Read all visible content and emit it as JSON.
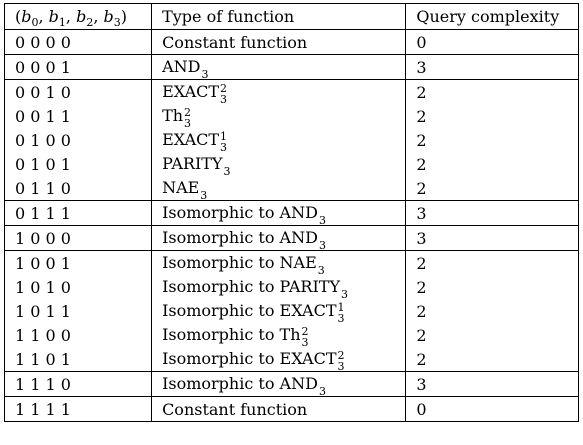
{
  "table": {
    "headers": {
      "bits": "(b0, b1, b2, b3)",
      "type": "Type of function",
      "query": "Query complexity"
    },
    "rows": [
      {
        "bits": "0 0 0 0",
        "prefix": "",
        "base": "Constant function",
        "sup": "",
        "sub": "",
        "query": "0",
        "group_start": true
      },
      {
        "bits": "0 0 0 1",
        "prefix": "",
        "base": "AND",
        "sup": "",
        "sub": "3",
        "query": "3",
        "group_start": true
      },
      {
        "bits": "0 0 1 0",
        "prefix": "",
        "base": "EXACT",
        "sup": "2",
        "sub": "3",
        "query": "2",
        "group_start": true
      },
      {
        "bits": "0 0 1 1",
        "prefix": "",
        "base": "Th",
        "sup": "2",
        "sub": "3",
        "query": "2",
        "group_start": false
      },
      {
        "bits": "0 1 0 0",
        "prefix": "",
        "base": "EXACT",
        "sup": "1",
        "sub": "3",
        "query": "2",
        "group_start": false
      },
      {
        "bits": "0 1 0 1",
        "prefix": "",
        "base": "PARITY",
        "sup": "",
        "sub": "3",
        "query": "2",
        "group_start": false
      },
      {
        "bits": "0 1 1 0",
        "prefix": "",
        "base": "NAE",
        "sup": "",
        "sub": "3",
        "query": "2",
        "group_start": false
      },
      {
        "bits": "0 1 1 1",
        "prefix": "Isomorphic to ",
        "base": "AND",
        "sup": "",
        "sub": "3",
        "query": "3",
        "group_start": true
      },
      {
        "bits": "1 0 0 0",
        "prefix": "Isomorphic to ",
        "base": "AND",
        "sup": "",
        "sub": "3",
        "query": "3",
        "group_start": true
      },
      {
        "bits": "1 0 0 1",
        "prefix": "Isomorphic to ",
        "base": "NAE",
        "sup": "",
        "sub": "3",
        "query": "2",
        "group_start": true
      },
      {
        "bits": "1 0 1 0",
        "prefix": "Isomorphic to ",
        "base": "PARITY",
        "sup": "",
        "sub": "3",
        "query": "2",
        "group_start": false
      },
      {
        "bits": "1 0 1 1",
        "prefix": "Isomorphic to ",
        "base": "EXACT",
        "sup": "1",
        "sub": "3",
        "query": "2",
        "group_start": false
      },
      {
        "bits": "1 1 0 0",
        "prefix": "Isomorphic to ",
        "base": "Th",
        "sup": "2",
        "sub": "3",
        "query": "2",
        "group_start": false
      },
      {
        "bits": "1 1 0 1",
        "prefix": "Isomorphic to ",
        "base": "EXACT",
        "sup": "2",
        "sub": "3",
        "query": "2",
        "group_start": false
      },
      {
        "bits": "1 1 1 0",
        "prefix": "Isomorphic to ",
        "base": "AND",
        "sup": "",
        "sub": "3",
        "query": "3",
        "group_start": true
      },
      {
        "bits": "1 1 1 1",
        "prefix": "",
        "base": "Constant function",
        "sup": "",
        "sub": "",
        "query": "0",
        "group_start": true
      }
    ]
  }
}
